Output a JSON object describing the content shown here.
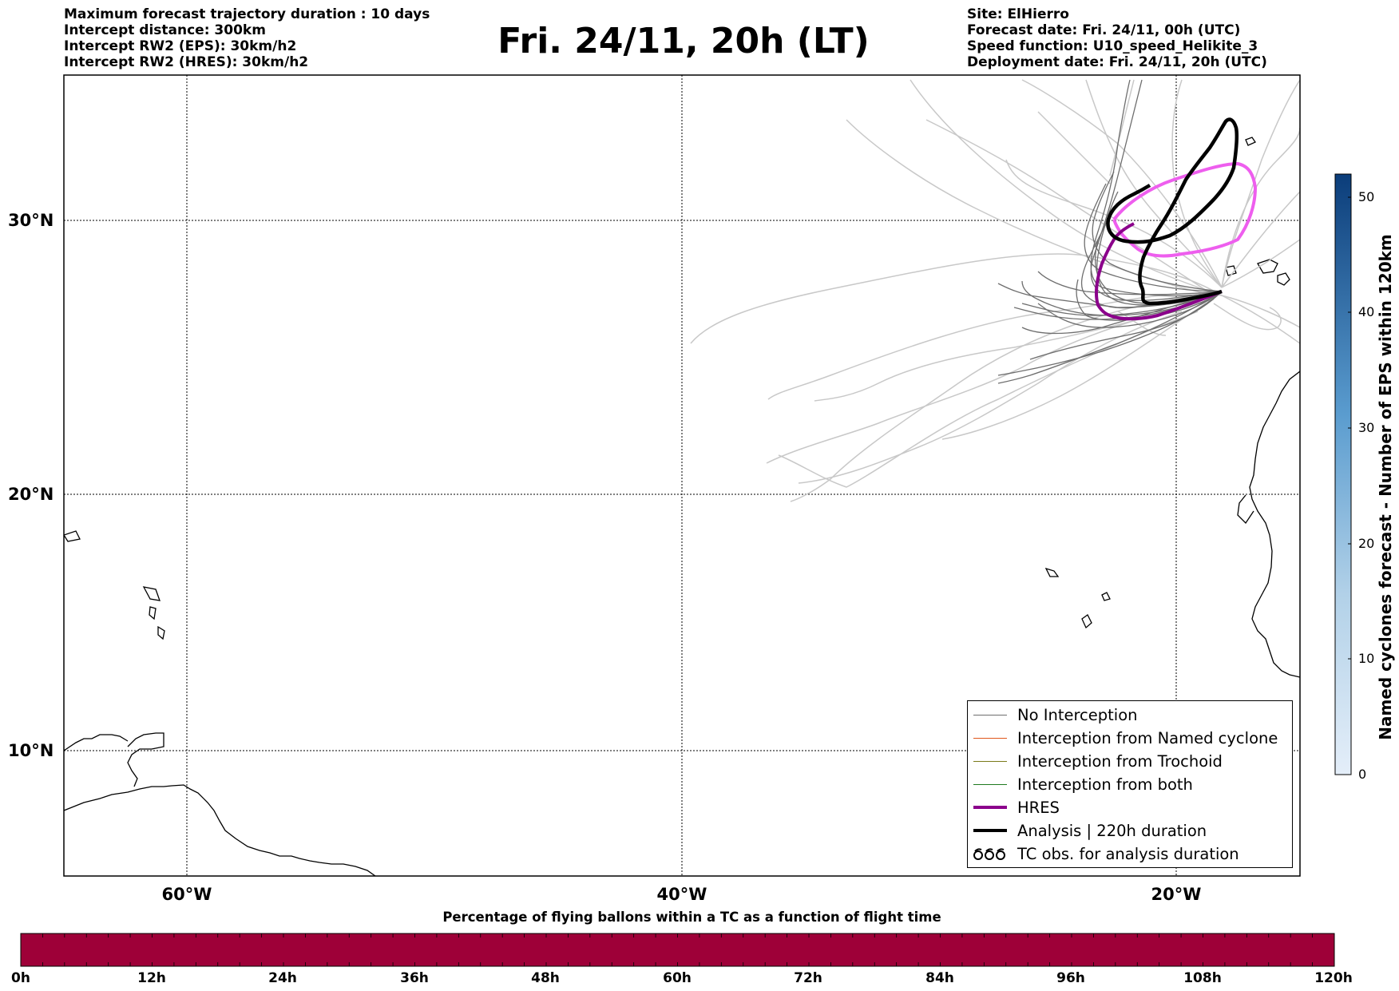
{
  "title": "Fri. 24/11, 20h (LT)",
  "header_left": [
    "Maximum forecast trajectory duration : 10 days",
    "Intercept distance: 300km",
    "Intercept RW2 (EPS):  30km/h2",
    "Intercept RW2 (HRES): 30km/h2"
  ],
  "header_right": [
    "Site: ElHierro",
    "Forecast date: Fri. 24/11, 00h (UTC)",
    "Speed function: U10_speed_Helikite_3",
    "Deployment date: Fri. 24/11, 20h (UTC)"
  ],
  "map": {
    "lat_labels": [
      "30°N",
      "20°N",
      "10°N"
    ],
    "lon_labels": [
      "60°W",
      "40°W",
      "20°W"
    ],
    "gridlines": true,
    "colors": {
      "no_interception": "#6e6e6e",
      "eps_light": "#c8c8c8",
      "hres": "#8b008b",
      "analysis": "#000000",
      "magenta_track": "#ee5eee"
    }
  },
  "legend": {
    "items": [
      {
        "label": "No Interception",
        "color": "#6e6e6e",
        "style": "thin"
      },
      {
        "label": "Interception from Named cyclone",
        "color": "#e0561b",
        "style": "thin"
      },
      {
        "label": "Interception from Trochoid",
        "color": "#7a7a1a",
        "style": "thin"
      },
      {
        "label": "Interception from both",
        "color": "#1f7a1f",
        "style": "thin"
      },
      {
        "label": "HRES",
        "color": "#8b008b",
        "style": "thick"
      },
      {
        "label": "Analysis | 220h duration",
        "color": "#000000",
        "style": "thick"
      },
      {
        "label": "TC obs. for analysis duration",
        "color": "#000000",
        "style": "symbol"
      }
    ]
  },
  "colorbar": {
    "label": "Named cyclones forecast - Number of EPS within 120km",
    "ticks": [
      "0",
      "10",
      "20",
      "30",
      "40",
      "50"
    ],
    "range": [
      0,
      52
    ],
    "color_low": "#e4eef9",
    "color_high": "#0b3d7a"
  },
  "percent_bar": {
    "title": "Percentage of flying ballons within a TC as a function of flight time",
    "ticks": [
      "0h",
      "12h",
      "24h",
      "36h",
      "48h",
      "60h",
      "72h",
      "84h",
      "96h",
      "108h",
      "120h"
    ],
    "fill_color": "#9e0038",
    "percent_values": [
      0,
      0,
      0,
      0,
      0,
      0,
      0,
      0,
      0,
      0,
      0
    ]
  }
}
